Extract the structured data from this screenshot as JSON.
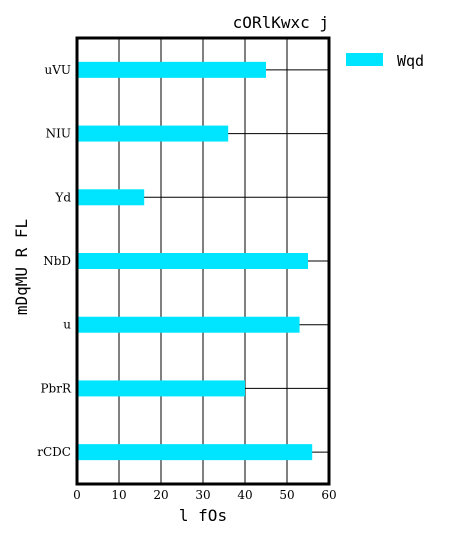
{
  "chart_data": {
    "type": "bar",
    "orientation": "horizontal",
    "title": "cORlKwxc j",
    "xlabel": "l fOs",
    "ylabel": "mDqMU R FL",
    "categories": [
      "uVU",
      "NIU",
      "Yd",
      "NbD",
      "u",
      "PbrR",
      "rCDC"
    ],
    "series": [
      {
        "name": "Wqd",
        "values": [
          45,
          36,
          16,
          55,
          53,
          40,
          56
        ],
        "color": "#00e5ff"
      }
    ],
    "xlim": [
      0,
      60
    ],
    "xticks": [
      0,
      10,
      20,
      30,
      40,
      50,
      60
    ],
    "grid": true,
    "legend": "outside-top-right"
  }
}
